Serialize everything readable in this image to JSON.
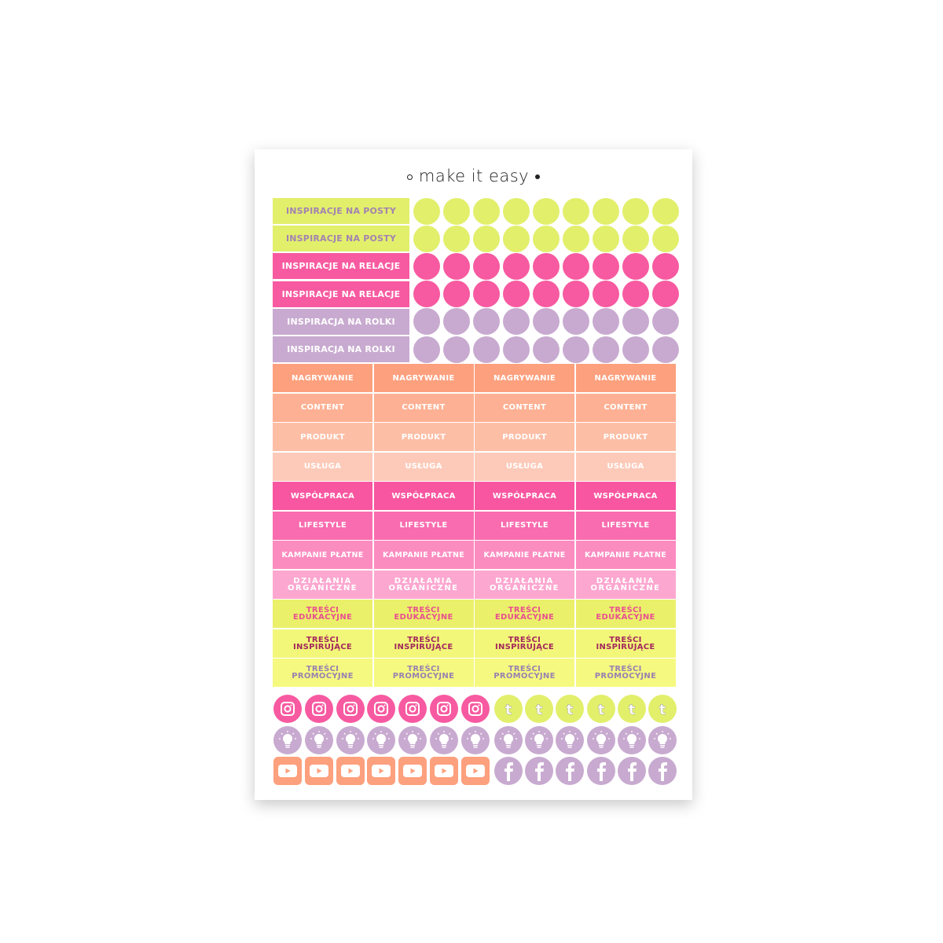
{
  "brand": "make it easy",
  "colors": {
    "lime": "#e2ef6b",
    "pink": "#f75aa0",
    "lilac": "#c8aad0",
    "orange": "#fda07e"
  },
  "top_labels": [
    {
      "text": "INSPIRACJE NA POSTY",
      "bg": "#e2ef6b",
      "fg": "#a283b0",
      "circle": "#e2ef6b"
    },
    {
      "text": "INSPIRACJE NA POSTY",
      "bg": "#e2ef6b",
      "fg": "#a283b0",
      "circle": "#e2ef6b"
    },
    {
      "text": "INSPIRACJE NA RELACJE",
      "bg": "#f75aa0",
      "fg": "#ffffff",
      "circle": "#f75aa0"
    },
    {
      "text": "INSPIRACJE NA RELACJE",
      "bg": "#f75aa0",
      "fg": "#ffffff",
      "circle": "#f75aa0"
    },
    {
      "text": "INSPIRACJA NA ROLKI",
      "bg": "#c8aad0",
      "fg": "#ffffff",
      "circle": "#c8aad0"
    },
    {
      "text": "INSPIRACJA NA ROLKI",
      "bg": "#c8aad0",
      "fg": "#ffffff",
      "circle": "#c8aad0"
    }
  ],
  "grid_rows": [
    {
      "text": "NAGRYWANIE",
      "bg": "#fda07e",
      "fg": "#ffffff"
    },
    {
      "text": "CONTENT",
      "bg": "#fdb093",
      "fg": "#ffffff"
    },
    {
      "text": "PRODUKT",
      "bg": "#fdbea6",
      "fg": "#ffffff"
    },
    {
      "text": "USŁUGA",
      "bg": "#fdcab9",
      "fg": "#ffffff"
    },
    {
      "text": "WSPÓŁPRACA",
      "bg": "#f856a0",
      "fg": "#ffffff"
    },
    {
      "text": "LIFESTYLE",
      "bg": "#f96caf",
      "fg": "#ffffff"
    },
    {
      "text": "KAMPANIE PŁATNE",
      "bg": "#fb8cc0",
      "fg": "#ffffff"
    },
    {
      "text": "DZIAŁANIA\nORGANICZNE",
      "bg": "#fca7d0",
      "fg": "#ffffff"
    },
    {
      "text": "TREŚCI\nEDUKACYJNE",
      "bg": "#ebf06a",
      "fg": "#e8508f"
    },
    {
      "text": "TREŚCI\nINSPIRUJĄCE",
      "bg": "#f3f779",
      "fg": "#a3285c"
    },
    {
      "text": "TREŚCI\nPROMOCYJNE",
      "bg": "#f5f980",
      "fg": "#9a80b0"
    }
  ],
  "icon_rows": [
    [
      {
        "icon": "instagram-icon",
        "bg": "#f75aa0",
        "count": 7
      },
      {
        "icon": "tumblr-icon",
        "bg": "#e2ef6b",
        "count": 6
      }
    ],
    [
      {
        "icon": "lightbulb-icon",
        "bg": "#c8aad0",
        "count": 7
      },
      {
        "icon": "lightbulb-icon",
        "bg": "#c8aad0",
        "count": 6
      }
    ],
    [
      {
        "icon": "youtube-icon",
        "bg": "#fda07e",
        "count": 7
      },
      {
        "icon": "facebook-icon",
        "bg": "#c8aad0",
        "count": 6
      }
    ]
  ]
}
